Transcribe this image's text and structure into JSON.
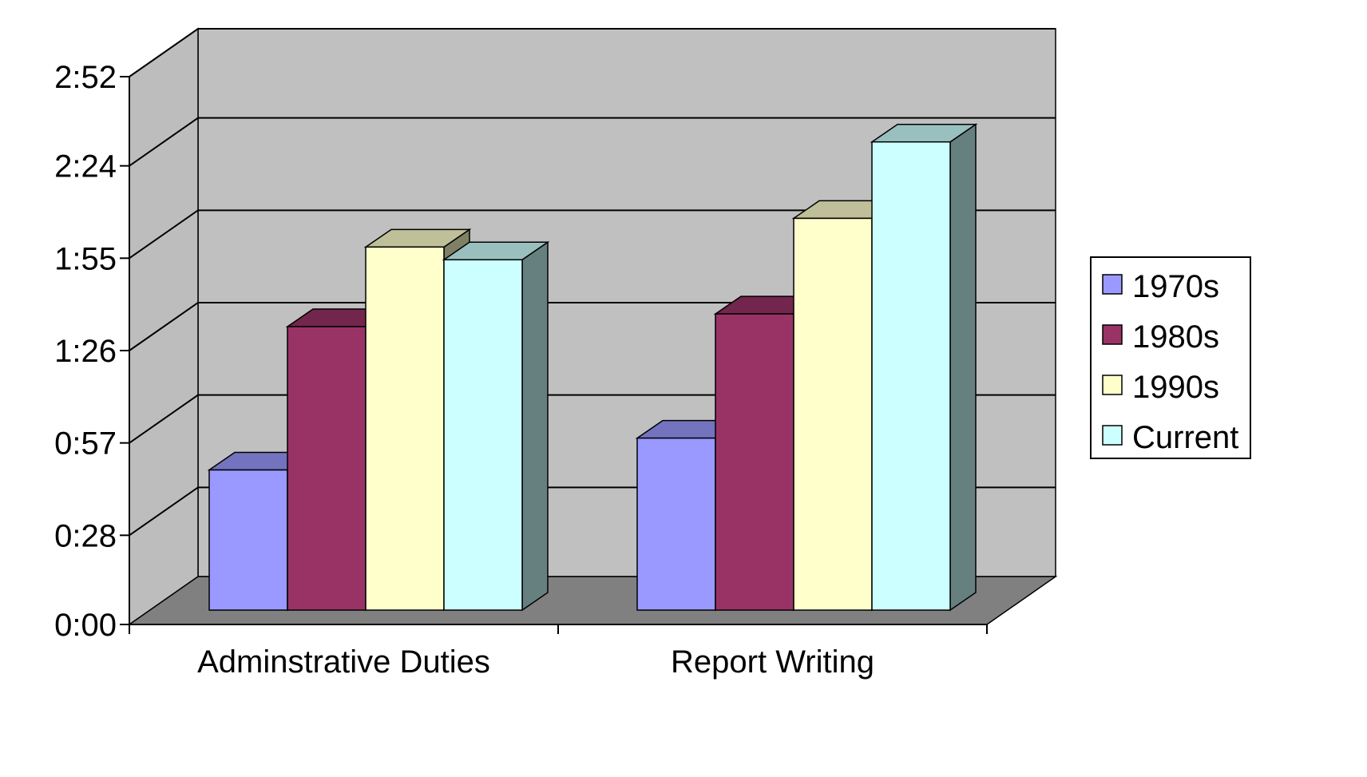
{
  "chart_data": {
    "type": "bar",
    "style": "3d-clustered-column",
    "categories": [
      "Adminstrative Duties",
      "Report Writing"
    ],
    "series": [
      {
        "name": "1970s",
        "color": "#9999FF",
        "values": [
          "0:44",
          "0:54"
        ]
      },
      {
        "name": "1980s",
        "color": "#993366",
        "values": [
          "1:29",
          "1:33"
        ]
      },
      {
        "name": "1990s",
        "color": "#FFFFCC",
        "values": [
          "1:54",
          "2:03"
        ]
      },
      {
        "name": "Current",
        "color": "#CCFFFF",
        "values": [
          "1:50",
          "2:27"
        ]
      }
    ],
    "y_tick_labels": [
      "0:00",
      "0:28",
      "0:57",
      "1:26",
      "1:55",
      "2:24",
      "2:52"
    ],
    "ylim": [
      "0:00",
      "2:52"
    ],
    "title": "",
    "xlabel": "",
    "ylabel": "",
    "grid": true,
    "legend_position": "right",
    "wall_color": "#C0C0C0",
    "floor_color": "#808080"
  }
}
